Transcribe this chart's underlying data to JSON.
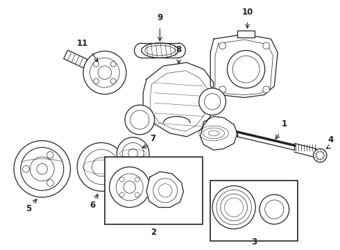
{
  "background_color": "#ffffff",
  "fig_width": 4.9,
  "fig_height": 3.6,
  "dpi": 100,
  "line_color": "#222222",
  "line_width": 0.9,
  "font_size": 8.5
}
